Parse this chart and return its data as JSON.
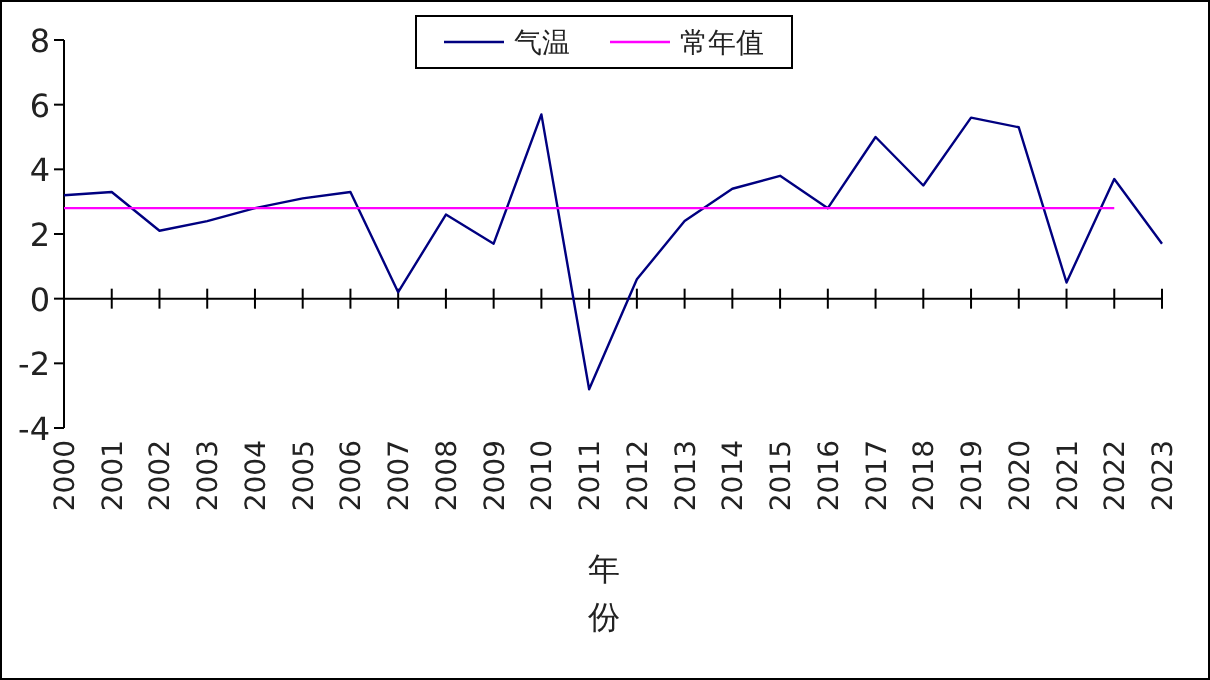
{
  "chart_data": {
    "type": "line",
    "xlabel": "年份",
    "categories": [
      "2000",
      "2001",
      "2002",
      "2003",
      "2004",
      "2005",
      "2006",
      "2007",
      "2008",
      "2009",
      "2010",
      "2011",
      "2012",
      "2013",
      "2014",
      "2015",
      "2016",
      "2017",
      "2018",
      "2019",
      "2020",
      "2021",
      "2022",
      "2023"
    ],
    "series": [
      {
        "name": "气温",
        "color": "#000080",
        "values": [
          3.2,
          3.3,
          2.1,
          2.4,
          2.8,
          3.1,
          3.3,
          0.2,
          2.6,
          1.7,
          5.7,
          -2.8,
          0.6,
          2.4,
          3.4,
          3.8,
          2.8,
          5.0,
          3.5,
          5.6,
          5.3,
          0.5,
          3.7,
          1.7
        ]
      },
      {
        "name": "常年值",
        "color": "#ff00ff",
        "values": [
          2.8,
          2.8,
          2.8,
          2.8,
          2.8,
          2.8,
          2.8,
          2.8,
          2.8,
          2.8,
          2.8,
          2.8,
          2.8,
          2.8,
          2.8,
          2.8,
          2.8,
          2.8,
          2.8,
          2.8,
          2.8,
          2.8,
          2.8,
          null
        ]
      }
    ],
    "ylim": [
      -4,
      8
    ],
    "yticks": [
      -4,
      -2,
      0,
      2,
      4,
      6,
      8
    ],
    "legend": "top",
    "marker": "none",
    "line_style": "solid"
  }
}
